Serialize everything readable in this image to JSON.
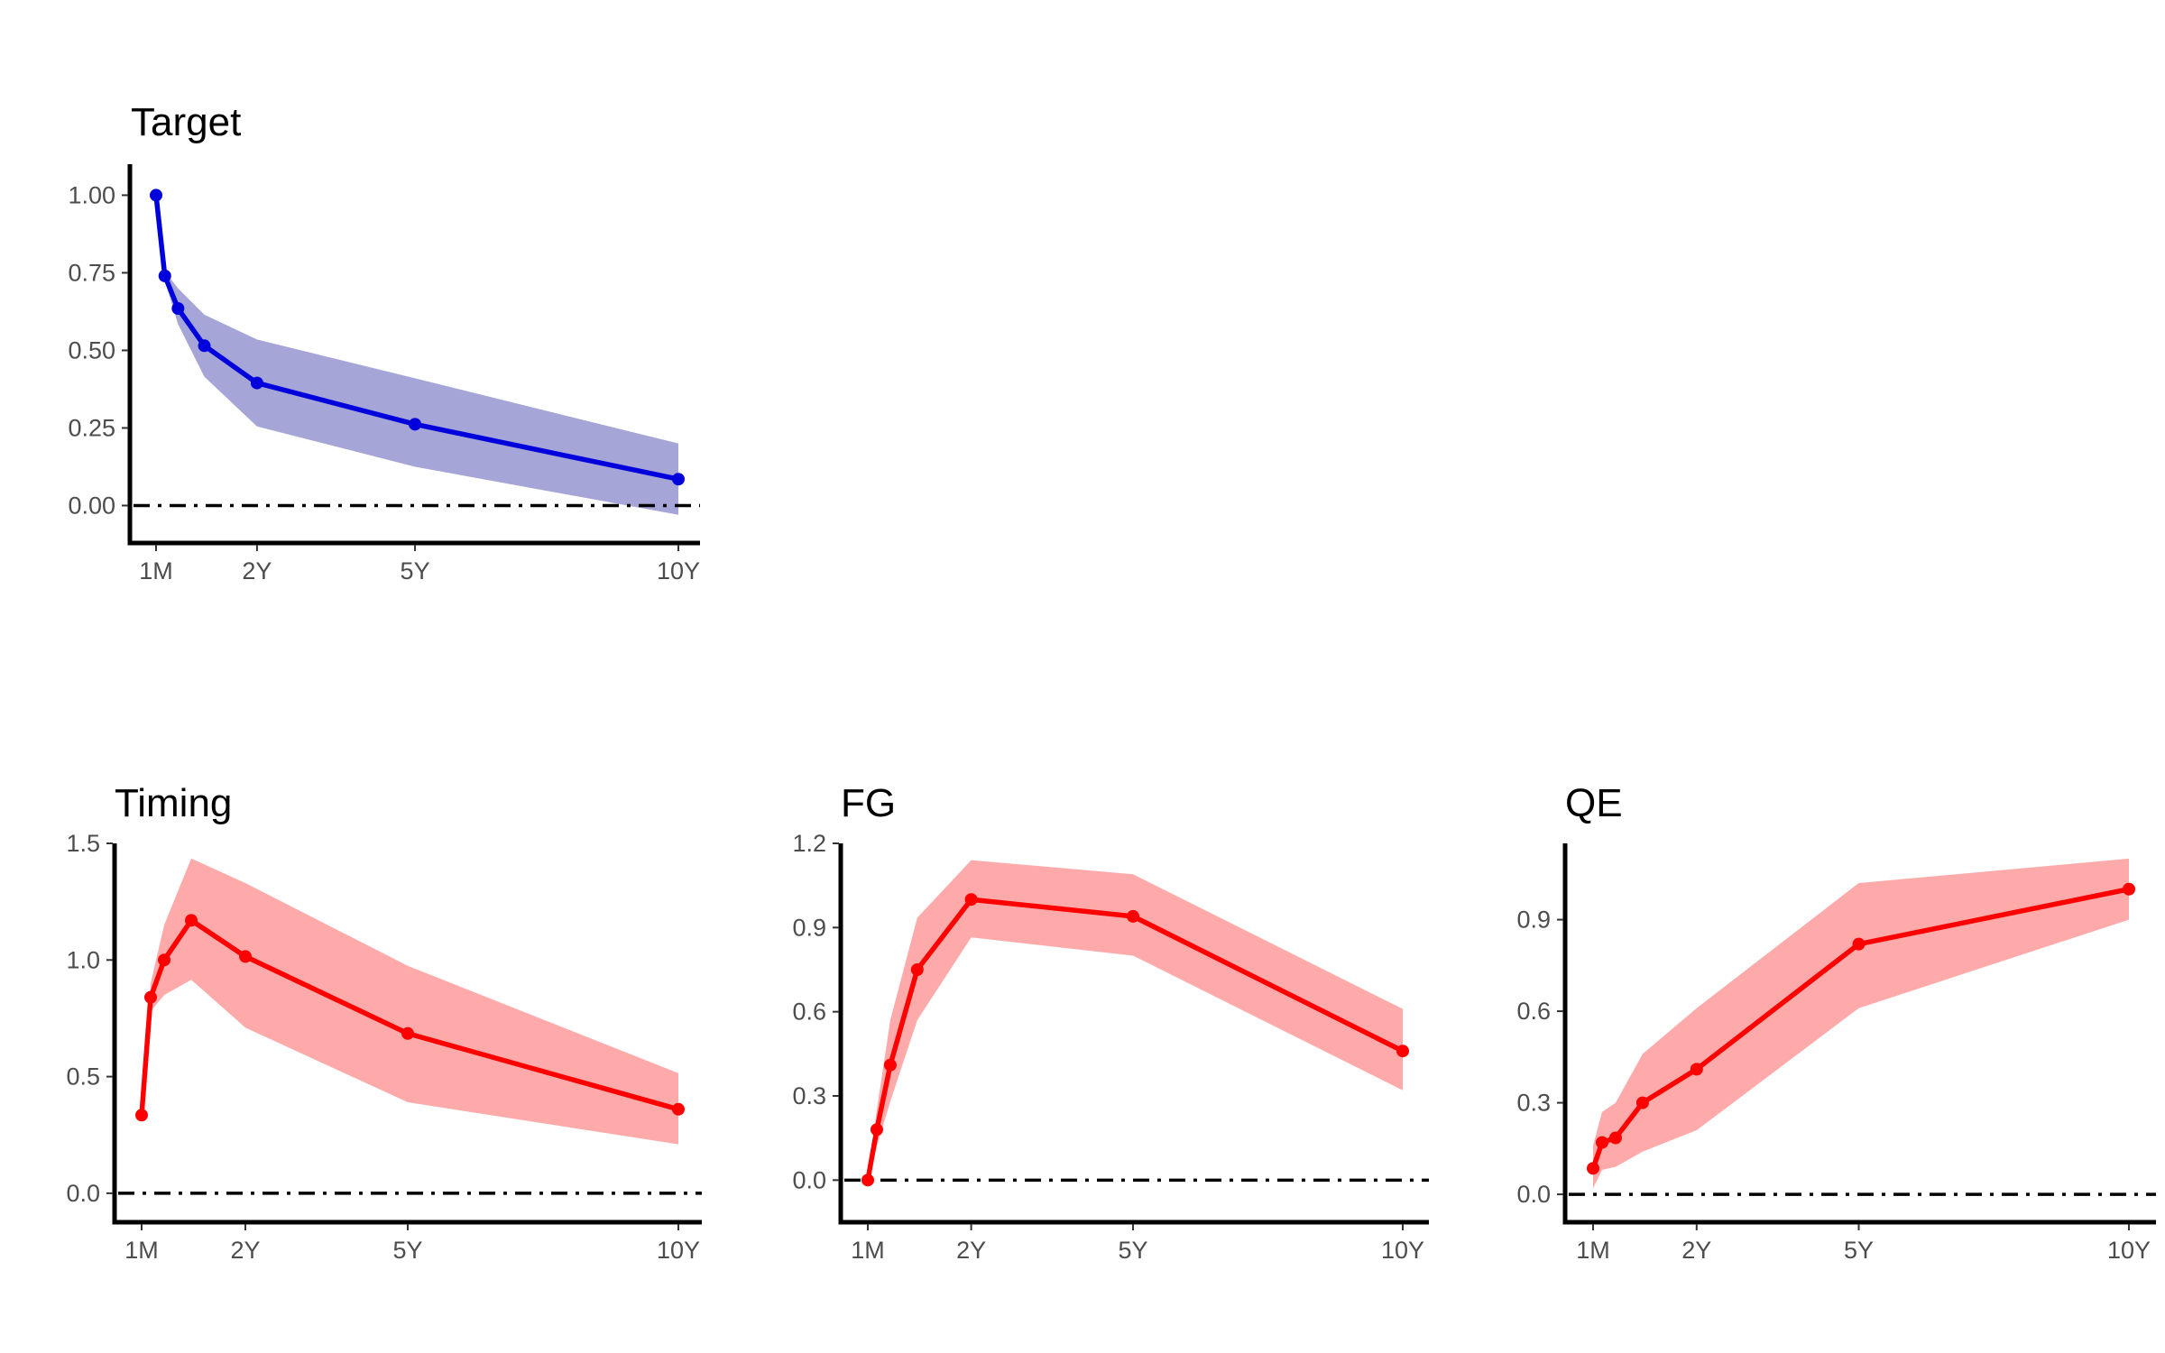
{
  "chart_data": [
    {
      "type": "line",
      "title": "Target",
      "xlabel": "",
      "ylabel": "",
      "color": "#0000dd",
      "band_color": "#a5a5d8",
      "x_ticks": [
        "1M",
        "2Y",
        "5Y",
        "10Y"
      ],
      "x_tick_values": [
        0.0833,
        2,
        5,
        10
      ],
      "x": [
        0.0833,
        0.25,
        0.5,
        1,
        2,
        5,
        10
      ],
      "y_ticks": [
        "0.00",
        "0.25",
        "0.50",
        "0.75",
        "1.00"
      ],
      "y_tick_values": [
        0,
        0.25,
        0.5,
        0.75,
        1.0
      ],
      "ylim": [
        -0.08,
        1.1
      ],
      "values": [
        1.0,
        0.74,
        0.635,
        0.515,
        0.395,
        0.262,
        0.085
      ],
      "upper": [
        1.0,
        0.755,
        0.7,
        0.615,
        0.535,
        0.41,
        0.2
      ],
      "lower": [
        1.0,
        0.725,
        0.585,
        0.415,
        0.255,
        0.125,
        -0.03
      ],
      "zero_line": true,
      "grid": false
    },
    {
      "type": "line",
      "title": "Timing",
      "xlabel": "",
      "ylabel": "",
      "color": "#ff0000",
      "band_color": "#ffaaaa",
      "x_ticks": [
        "1M",
        "2Y",
        "5Y",
        "10Y"
      ],
      "x_tick_values": [
        0.0833,
        2,
        5,
        10
      ],
      "x": [
        0.0833,
        0.25,
        0.5,
        1,
        2,
        5,
        10
      ],
      "y_ticks": [
        "0.0",
        "0.5",
        "1.0",
        "1.5"
      ],
      "y_tick_values": [
        0,
        0.5,
        1.0,
        1.5
      ],
      "ylim": [
        -0.07,
        1.5
      ],
      "values": [
        0.335,
        0.84,
        1.0,
        1.17,
        1.015,
        0.685,
        0.36
      ],
      "upper": [
        0.345,
        0.9,
        1.15,
        1.435,
        1.33,
        0.975,
        0.515
      ],
      "lower": [
        0.325,
        0.78,
        0.85,
        0.915,
        0.71,
        0.39,
        0.21
      ],
      "zero_line": true,
      "grid": false
    },
    {
      "type": "line",
      "title": "FG",
      "xlabel": "",
      "ylabel": "",
      "color": "#ff0000",
      "band_color": "#ffaaaa",
      "x_ticks": [
        "1M",
        "2Y",
        "5Y",
        "10Y"
      ],
      "x_tick_values": [
        0.0833,
        2,
        5,
        10
      ],
      "x": [
        0.0833,
        0.25,
        0.5,
        1,
        2,
        5,
        10
      ],
      "y_ticks": [
        "0.0",
        "0.3",
        "0.6",
        "0.9",
        "1.2"
      ],
      "y_tick_values": [
        0,
        0.3,
        0.6,
        0.9,
        1.2
      ],
      "ylim": [
        -0.105,
        1.2
      ],
      "values": [
        0.0,
        0.18,
        0.41,
        0.75,
        1.0,
        0.94,
        0.46
      ],
      "upper": [
        0.01,
        0.25,
        0.57,
        0.935,
        1.14,
        1.09,
        0.61
      ],
      "lower": [
        -0.01,
        0.12,
        0.28,
        0.57,
        0.865,
        0.8,
        0.32
      ],
      "zero_line": true,
      "grid": false
    },
    {
      "type": "line",
      "title": "QE",
      "xlabel": "",
      "ylabel": "",
      "color": "#ff0000",
      "band_color": "#ffaaaa",
      "x_ticks": [
        "1M",
        "2Y",
        "5Y",
        "10Y"
      ],
      "x_tick_values": [
        0.0833,
        2,
        5,
        10
      ],
      "x": [
        0.0833,
        0.25,
        0.5,
        1,
        2,
        5,
        10
      ],
      "y_ticks": [
        "0.0",
        "0.3",
        "0.6",
        "0.9"
      ],
      "y_tick_values": [
        0,
        0.3,
        0.6,
        0.9
      ],
      "ylim": [
        -0.05,
        1.15
      ],
      "values": [
        0.085,
        0.17,
        0.185,
        0.3,
        0.41,
        0.82,
        1.0
      ],
      "upper": [
        0.16,
        0.27,
        0.3,
        0.46,
        0.61,
        1.02,
        1.1
      ],
      "lower": [
        0.02,
        0.08,
        0.09,
        0.14,
        0.21,
        0.61,
        0.9
      ],
      "zero_line": true,
      "grid": false
    }
  ]
}
